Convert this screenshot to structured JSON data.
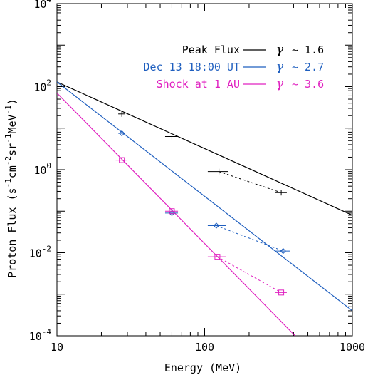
{
  "chart_data": {
    "type": "scatter",
    "xscale": "log",
    "yscale": "log",
    "xlim": [
      10,
      1000
    ],
    "ylim": [
      0.0001,
      10000
    ],
    "xlabel": "Energy (MeV)",
    "ylabel_main": "Proton Flux (s",
    "ylabel_units": [
      {
        "text": "-1",
        "sup": true
      },
      {
        "text": "cm",
        "sup": false
      },
      {
        "text": "-2",
        "sup": true
      },
      {
        "text": "sr",
        "sup": false
      },
      {
        "text": "-1",
        "sup": true
      },
      {
        "text": "MeV",
        "sup": false
      },
      {
        "text": "-1",
        "sup": true
      },
      {
        "text": ")",
        "sup": false
      }
    ],
    "x_ticks": [
      {
        "value": 10,
        "label": "10"
      },
      {
        "value": 100,
        "label": "100"
      },
      {
        "value": 1000,
        "label": "1000"
      }
    ],
    "y_ticks": [
      {
        "value": 0.0001,
        "base": "10",
        "exp": "-4"
      },
      {
        "value": 0.01,
        "base": "10",
        "exp": "-2"
      },
      {
        "value": 1,
        "base": "10",
        "exp": "0"
      },
      {
        "value": 100,
        "base": "10",
        "exp": "2"
      },
      {
        "value": 10000,
        "base": "10",
        "exp": "4"
      }
    ],
    "series": [
      {
        "name": "Peak Flux",
        "color": "#000000",
        "marker": "plus",
        "gamma_symbol": "γ",
        "gamma_text": "~ 1.6",
        "fit_points": [
          [
            10,
            130
          ],
          [
            1000,
            0.08
          ]
        ],
        "points": [
          {
            "x": 27.5,
            "y": 22,
            "xerr": [
              26,
              29
            ]
          },
          {
            "x": 60,
            "y": 6.3,
            "xerr": [
              54,
              66
            ]
          },
          {
            "x": 125,
            "y": 0.9,
            "xerr": [
              105,
              145
            ]
          },
          {
            "x": 330,
            "y": 0.28,
            "xerr": [
              300,
              360
            ]
          }
        ],
        "dashed_segment": [
          [
            125,
            0.9
          ],
          [
            330,
            0.28
          ]
        ]
      },
      {
        "name": "Dec 13 18:00 UT",
        "color": "#1f5fbf",
        "marker": "diamond",
        "gamma_symbol": "γ",
        "gamma_text": "~ 2.7",
        "fit_points": [
          [
            10,
            130
          ],
          [
            1000,
            0.0004
          ]
        ],
        "points": [
          {
            "x": 27.5,
            "y": 7.5,
            "xerr": [
              26,
              29
            ]
          },
          {
            "x": 60,
            "y": 0.09,
            "xerr": [
              54,
              66
            ]
          },
          {
            "x": 120,
            "y": 0.045,
            "xerr": [
              105,
              140
            ]
          },
          {
            "x": 340,
            "y": 0.011,
            "xerr": [
              300,
              380
            ]
          }
        ],
        "dashed_segment": [
          [
            120,
            0.045
          ],
          [
            340,
            0.011
          ]
        ]
      },
      {
        "name": "Shock at 1 AU",
        "color": "#e020c0",
        "marker": "square",
        "gamma_symbol": "γ",
        "gamma_text": "~ 3.6",
        "fit_points": [
          [
            10,
            70
          ],
          [
            410,
            0.0001
          ]
        ],
        "points": [
          {
            "x": 27.5,
            "y": 1.7,
            "xerr": [
              25,
              30
            ]
          },
          {
            "x": 60,
            "y": 0.1,
            "xerr": [
              54,
              66
            ]
          },
          {
            "x": 122,
            "y": 0.008,
            "xerr": [
              105,
              140
            ]
          },
          {
            "x": 330,
            "y": 0.0011,
            "xerr": [
              300,
              360
            ]
          }
        ],
        "dashed_segment": [
          [
            122,
            0.008
          ],
          [
            330,
            0.0011
          ]
        ]
      }
    ],
    "legend_position": "top-right"
  }
}
